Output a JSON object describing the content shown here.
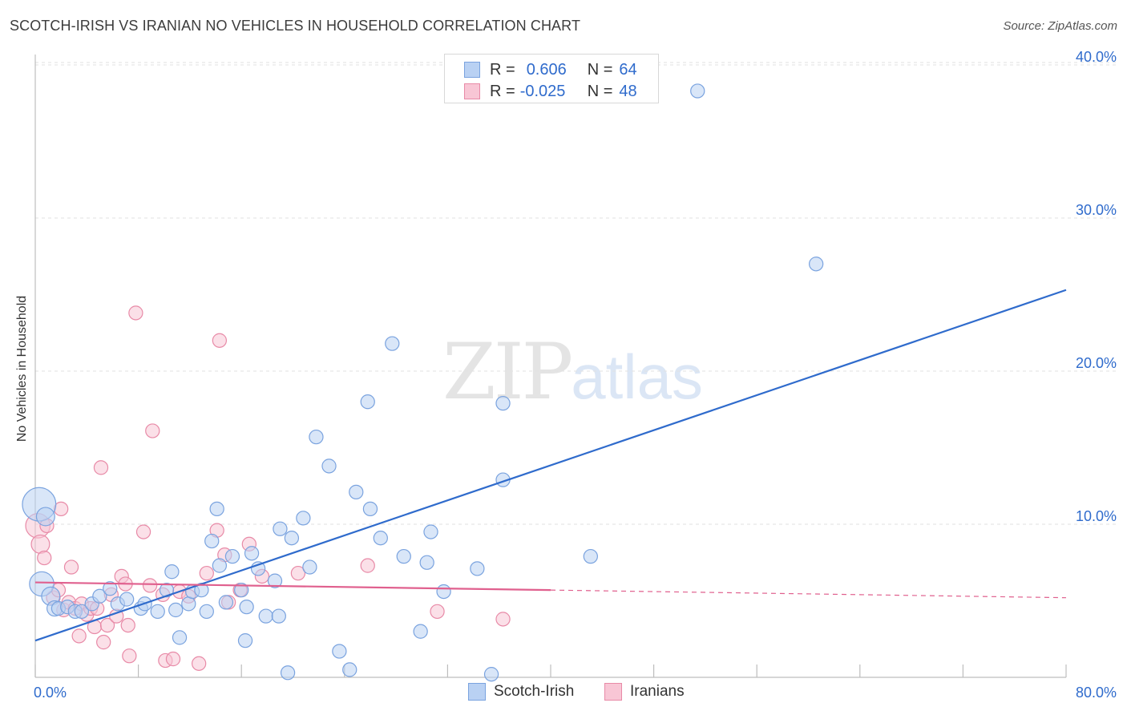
{
  "header": {
    "title": "SCOTCH-IRISH VS IRANIAN NO VEHICLES IN HOUSEHOLD CORRELATION CHART",
    "source": "Source: ZipAtlas.com"
  },
  "watermark": {
    "zip": "ZIP",
    "atlas": "atlas"
  },
  "legend": {
    "rows": [
      {
        "r_label": "R =",
        "r_value": "0.606",
        "n_label": "N =",
        "n_value": "64"
      },
      {
        "r_label": "R =",
        "r_value": "-0.025",
        "n_label": "N =",
        "n_value": "48"
      }
    ]
  },
  "bottom_legend": {
    "series1": "Scotch-Irish",
    "series2": "Iranians"
  },
  "colors": {
    "blue_fill": "#b9d1f3",
    "blue_stroke": "#7aa3df",
    "blue_line": "#2f6bcc",
    "pink_fill": "#f8c6d5",
    "pink_stroke": "#e88aa7",
    "pink_line": "#e0608e",
    "grid": "#e2e2e2",
    "tick_label": "#2f6bcc"
  },
  "chart_data": {
    "type": "scatter",
    "title": "SCOTCH-IRISH VS IRANIAN NO VEHICLES IN HOUSEHOLD CORRELATION CHART",
    "ylabel": "No Vehicles in Household",
    "xlabel": "",
    "xlim": [
      0,
      80
    ],
    "ylim": [
      0,
      40
    ],
    "x_tick_labels": [
      "0.0%",
      "80.0%"
    ],
    "y_ticks": [
      10,
      20,
      30,
      40
    ],
    "y_tick_labels": [
      "10.0%",
      "20.0%",
      "30.0%",
      "40.0%"
    ],
    "grid": true,
    "legend_position": "top-center",
    "series": [
      {
        "name": "Scotch-Irish",
        "trend": {
          "x": [
            0,
            80
          ],
          "y": [
            2.4,
            25.3
          ],
          "dashed_from": null
        },
        "points": [
          [
            0.3,
            11.3,
            2.2
          ],
          [
            0.5,
            6.1,
            1.6
          ],
          [
            1.2,
            5.3,
            1.2
          ],
          [
            1.5,
            4.5,
            1.0
          ],
          [
            1.8,
            4.5,
            0.9
          ],
          [
            2.5,
            4.6,
            0.9
          ],
          [
            3.1,
            4.3,
            0.9
          ],
          [
            3.6,
            4.3,
            0.9
          ],
          [
            4.4,
            4.8,
            0.9
          ],
          [
            5.0,
            5.3,
            0.9
          ],
          [
            5.8,
            5.8,
            0.9
          ],
          [
            6.4,
            4.8,
            0.9
          ],
          [
            7.1,
            5.1,
            0.9
          ],
          [
            8.2,
            4.5,
            0.9
          ],
          [
            8.5,
            4.8,
            0.9
          ],
          [
            9.5,
            4.3,
            0.9
          ],
          [
            10.2,
            5.7,
            0.9
          ],
          [
            10.6,
            6.9,
            0.9
          ],
          [
            10.9,
            4.4,
            0.9
          ],
          [
            11.2,
            2.6,
            0.9
          ],
          [
            11.9,
            4.8,
            0.9
          ],
          [
            12.2,
            5.6,
            0.9
          ],
          [
            12.9,
            5.7,
            0.9
          ],
          [
            13.3,
            4.3,
            0.9
          ],
          [
            13.7,
            8.9,
            0.9
          ],
          [
            14.1,
            11.0,
            0.9
          ],
          [
            14.3,
            7.3,
            0.9
          ],
          [
            14.8,
            4.9,
            0.9
          ],
          [
            15.3,
            7.9,
            0.9
          ],
          [
            16.0,
            5.7,
            0.9
          ],
          [
            16.4,
            4.6,
            0.9
          ],
          [
            16.3,
            2.4,
            0.9
          ],
          [
            16.8,
            8.1,
            0.9
          ],
          [
            17.3,
            7.1,
            0.9
          ],
          [
            17.9,
            4.0,
            0.9
          ],
          [
            18.6,
            6.3,
            0.9
          ],
          [
            18.9,
            4.0,
            0.9
          ],
          [
            19.0,
            9.7,
            0.9
          ],
          [
            19.9,
            9.1,
            0.9
          ],
          [
            19.6,
            0.3,
            0.9
          ],
          [
            20.8,
            10.4,
            0.9
          ],
          [
            21.3,
            7.2,
            0.9
          ],
          [
            21.8,
            15.7,
            0.9
          ],
          [
            22.8,
            13.8,
            0.9
          ],
          [
            23.6,
            1.7,
            0.9
          ],
          [
            24.4,
            0.5,
            0.9
          ],
          [
            24.9,
            12.1,
            0.9
          ],
          [
            25.8,
            18.0,
            0.9
          ],
          [
            26.0,
            11.0,
            0.9
          ],
          [
            26.8,
            9.1,
            0.9
          ],
          [
            27.7,
            21.8,
            0.9
          ],
          [
            28.6,
            7.9,
            0.9
          ],
          [
            29.9,
            3.0,
            0.9
          ],
          [
            30.4,
            7.5,
            0.9
          ],
          [
            30.7,
            9.5,
            0.9
          ],
          [
            31.7,
            5.6,
            0.9
          ],
          [
            34.3,
            7.1,
            0.9
          ],
          [
            35.4,
            0.2,
            0.9
          ],
          [
            36.3,
            17.9,
            0.9
          ],
          [
            36.3,
            12.9,
            0.9
          ],
          [
            43.1,
            7.9,
            0.9
          ],
          [
            51.4,
            38.3,
            0.9
          ],
          [
            60.6,
            27.0,
            0.9
          ],
          [
            0.8,
            10.5,
            1.2
          ]
        ]
      },
      {
        "name": "Iranians",
        "trend": {
          "x": [
            0,
            40,
            80
          ],
          "y": [
            6.2,
            5.7,
            5.2
          ],
          "dashed_from": 40
        },
        "points": [
          [
            0.2,
            9.9,
            1.6
          ],
          [
            0.4,
            8.7,
            1.2
          ],
          [
            0.7,
            7.8,
            0.9
          ],
          [
            0.9,
            9.9,
            0.9
          ],
          [
            1.4,
            5.2,
            0.9
          ],
          [
            1.8,
            5.7,
            0.9
          ],
          [
            2.0,
            11.0,
            0.9
          ],
          [
            2.2,
            4.4,
            0.9
          ],
          [
            2.6,
            4.9,
            0.9
          ],
          [
            2.8,
            7.2,
            0.9
          ],
          [
            3.1,
            4.5,
            0.9
          ],
          [
            3.4,
            2.7,
            0.9
          ],
          [
            3.6,
            4.8,
            0.9
          ],
          [
            4.0,
            4.1,
            0.9
          ],
          [
            4.3,
            4.5,
            0.9
          ],
          [
            4.6,
            3.3,
            0.9
          ],
          [
            4.8,
            4.5,
            0.9
          ],
          [
            5.1,
            13.7,
            0.9
          ],
          [
            5.3,
            2.3,
            0.9
          ],
          [
            5.6,
            3.4,
            0.9
          ],
          [
            5.9,
            5.4,
            0.9
          ],
          [
            6.3,
            4.0,
            0.9
          ],
          [
            6.7,
            6.6,
            0.9
          ],
          [
            7.0,
            6.1,
            0.9
          ],
          [
            7.2,
            3.4,
            0.9
          ],
          [
            7.3,
            1.4,
            0.9
          ],
          [
            7.8,
            23.8,
            0.9
          ],
          [
            8.4,
            9.5,
            0.9
          ],
          [
            8.9,
            6.0,
            0.9
          ],
          [
            9.1,
            16.1,
            0.9
          ],
          [
            9.9,
            5.4,
            0.9
          ],
          [
            10.1,
            1.1,
            0.9
          ],
          [
            10.7,
            1.2,
            0.9
          ],
          [
            11.2,
            5.6,
            0.9
          ],
          [
            11.9,
            5.3,
            0.9
          ],
          [
            12.7,
            0.9,
            0.9
          ],
          [
            13.3,
            6.8,
            0.9
          ],
          [
            14.1,
            9.6,
            0.9
          ],
          [
            14.3,
            22.0,
            0.9
          ],
          [
            14.7,
            8.0,
            0.9
          ],
          [
            15.0,
            4.9,
            0.9
          ],
          [
            15.9,
            5.7,
            0.9
          ],
          [
            16.6,
            8.7,
            0.9
          ],
          [
            17.6,
            6.6,
            0.9
          ],
          [
            20.4,
            6.8,
            0.9
          ],
          [
            25.8,
            7.3,
            0.9
          ],
          [
            31.2,
            4.3,
            0.9
          ],
          [
            36.3,
            3.8,
            0.9
          ]
        ]
      }
    ]
  }
}
